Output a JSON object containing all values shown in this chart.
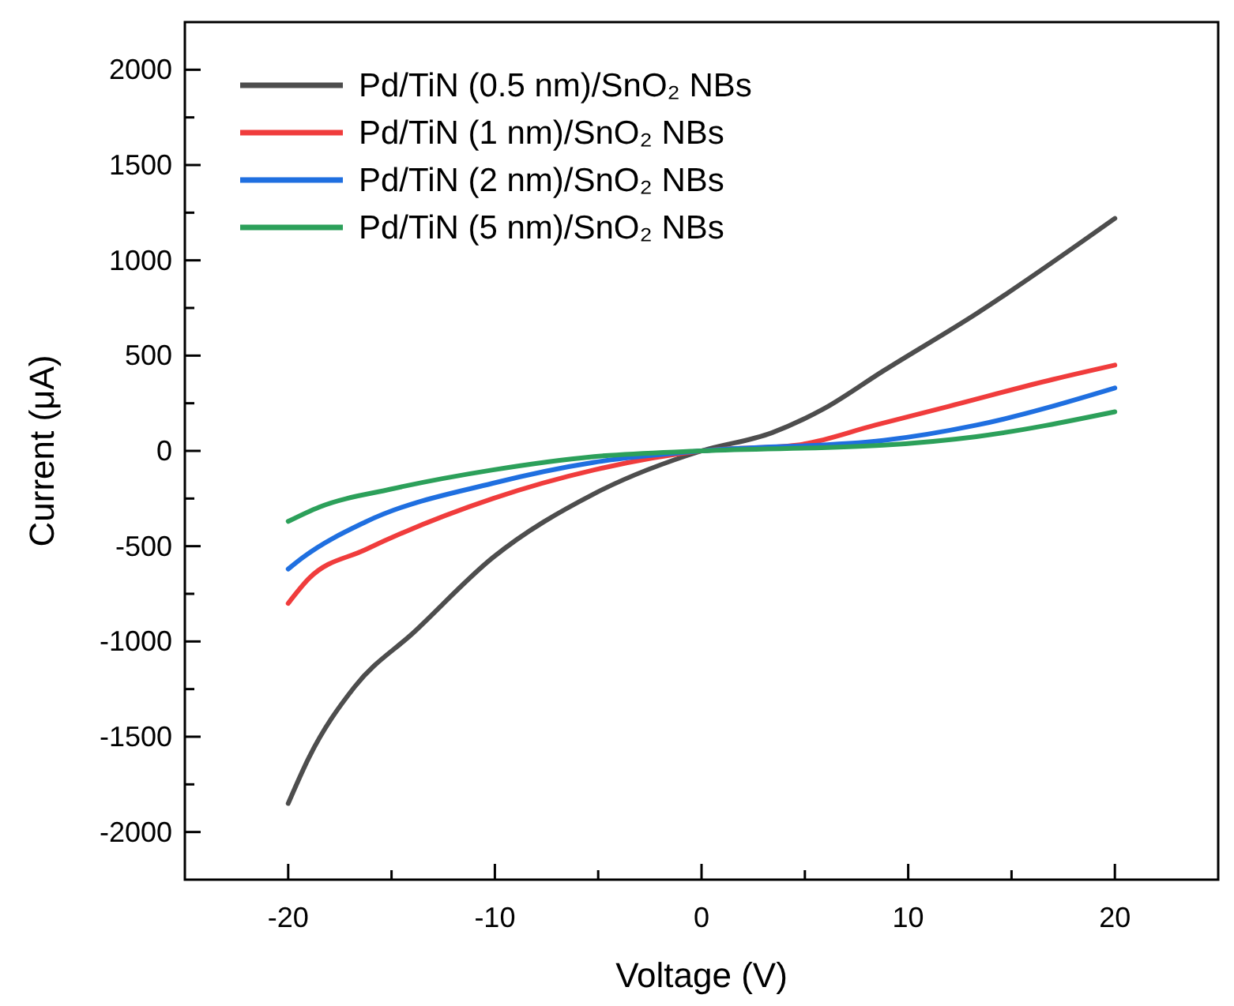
{
  "chart_data": {
    "type": "line",
    "xlabel": "Voltage (V)",
    "ylabel": "Current (μA)",
    "xlim": [
      -25,
      25
    ],
    "ylim": [
      -2250,
      2250
    ],
    "xticks": [
      -20,
      {
        "value": -15,
        "label": null
      },
      -10,
      {
        "value": -5,
        "label": null
      },
      0,
      {
        "value": 5,
        "label": null
      },
      10,
      {
        "value": 15,
        "label": null
      },
      20
    ],
    "yticks": [
      -2000,
      {
        "value": -1750,
        "label": null
      },
      -1500,
      {
        "value": -1250,
        "label": null
      },
      -1000,
      {
        "value": -750,
        "label": null
      },
      -500,
      {
        "value": -250,
        "label": null
      },
      0,
      {
        "value": 250,
        "label": null
      },
      500,
      {
        "value": 750,
        "label": null
      },
      1000,
      {
        "value": 1250,
        "label": null
      },
      1500,
      {
        "value": 1750,
        "label": null
      },
      2000
    ],
    "grid": false,
    "legend": "top left",
    "marker": "none",
    "line_style": "solid",
    "series": [
      {
        "name": "Pd/TiN (0.5 nm)/SnO₂ NBs",
        "color": "#4d4d4d",
        "x": [
          -20,
          -19,
          -16.8,
          -13.9,
          -10.1,
          -5.2,
          0,
          3.4,
          5.9,
          8.8,
          13.3,
          20
        ],
        "values": [
          -1850,
          -1610,
          -1240,
          -950,
          -560,
          -225,
          0,
          95,
          220,
          420,
          720,
          1220
        ]
      },
      {
        "name": "Pd/TiN (1 nm)/SnO₂ NBs",
        "color": "#f03c3c",
        "x": [
          -20,
          -19,
          -16.3,
          -10.1,
          -5.2,
          0,
          4.6,
          8.4,
          12,
          17,
          20
        ],
        "values": [
          -800,
          -670,
          -520,
          -250,
          -100,
          0,
          30,
          135,
          235,
          375,
          450
        ]
      },
      {
        "name": "Pd/TiN (2 nm)/SnO₂ NBs",
        "color": "#1f6fe0",
        "x": [
          -20,
          -19.3,
          -16.3,
          -10.1,
          -5.2,
          0,
          8.8,
          13.3,
          20
        ],
        "values": [
          -620,
          -560,
          -375,
          -170,
          -60,
          0,
          55,
          135,
          330
        ]
      },
      {
        "name": "Pd/TiN (5 nm)/SnO₂ NBs",
        "color": "#2ca05a",
        "x": [
          -20,
          -18.5,
          -15,
          -10.1,
          -5.2,
          0,
          8.8,
          13.3,
          20
        ],
        "values": [
          -370,
          -295,
          -200,
          -100,
          -30,
          0,
          30,
          75,
          205
        ]
      }
    ]
  }
}
